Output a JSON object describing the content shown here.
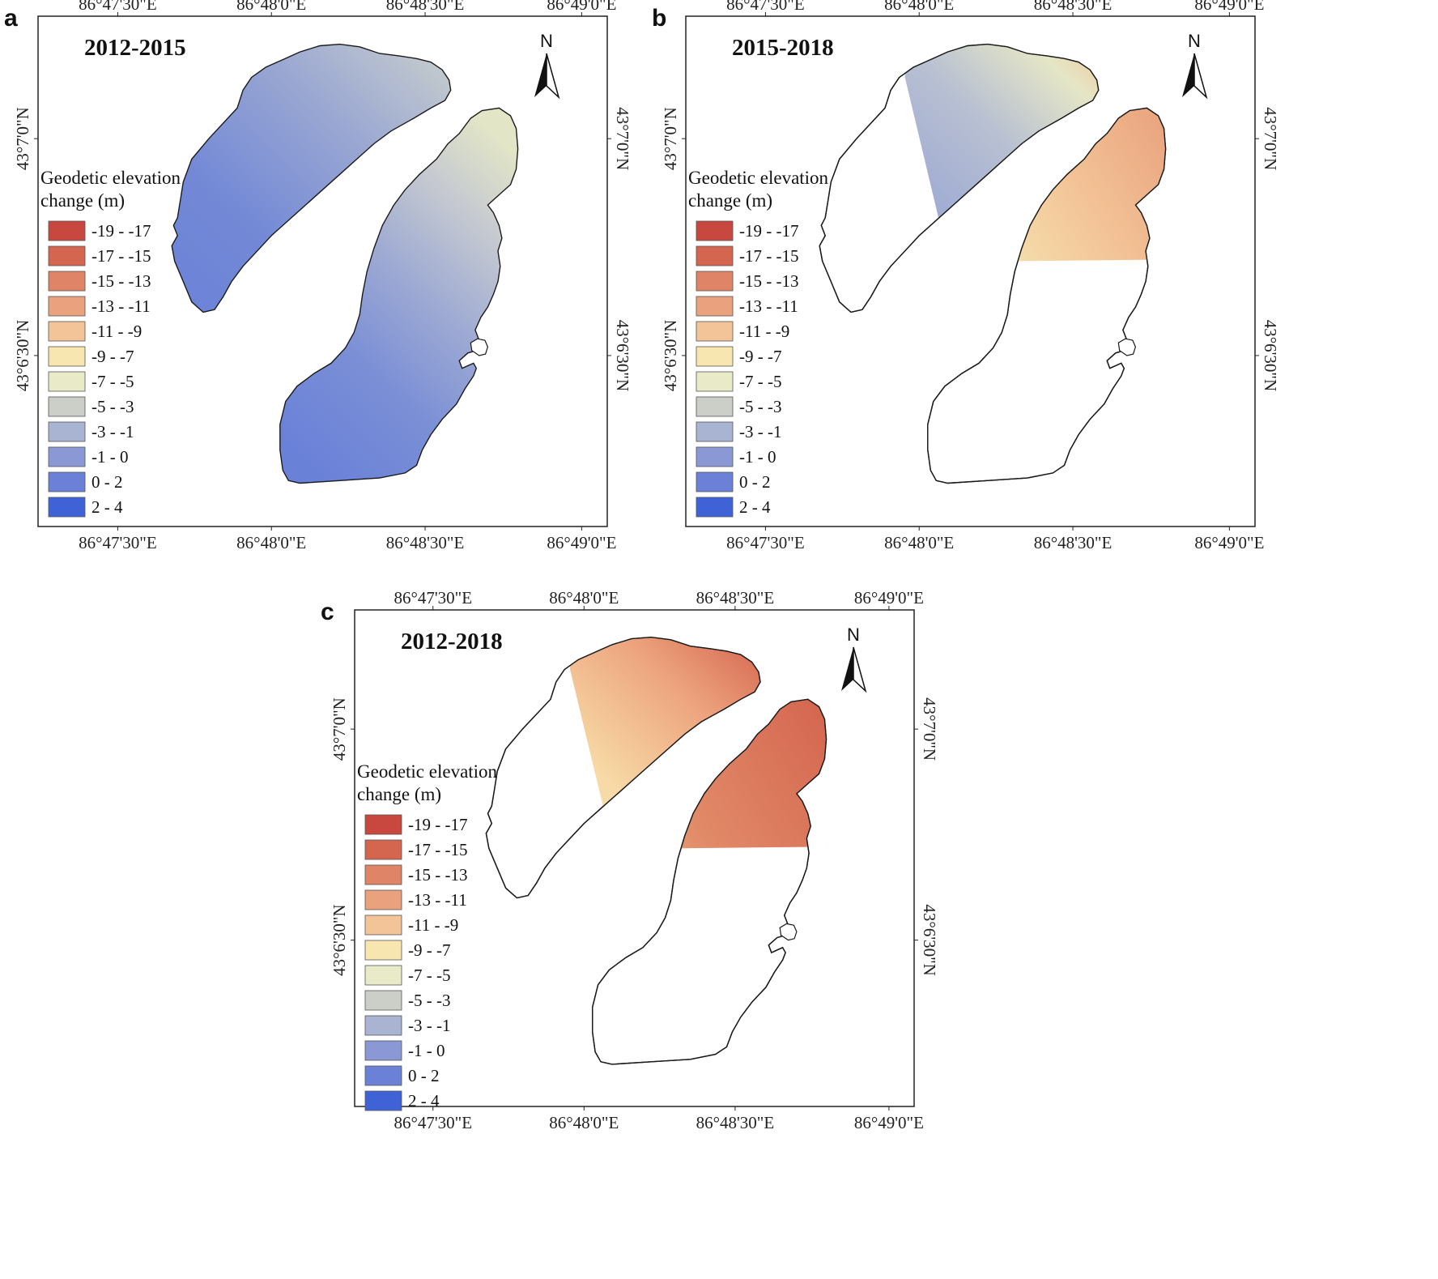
{
  "figure": {
    "colors": {
      "outline": "#1a1a1a",
      "frame": "#222222",
      "background": "#ffffff"
    },
    "legend": {
      "title_line1": "Geodetic elevation",
      "title_line2": "change (m)",
      "classes": [
        {
          "label": "-19 - -17",
          "color": "#c8473e"
        },
        {
          "label": "-17 - -15",
          "color": "#d4654f"
        },
        {
          "label": "-15 - -13",
          "color": "#df8466"
        },
        {
          "label": "-13 - -11",
          "color": "#e9a27d"
        },
        {
          "label": "-11 - -9",
          "color": "#f3c497"
        },
        {
          "label": "-9 - -7",
          "color": "#f8e6b0"
        },
        {
          "label": "-7 - -5",
          "color": "#e9ebc8"
        },
        {
          "label": "-5 - -3",
          "color": "#cccfc8"
        },
        {
          "label": "-3 - -1",
          "color": "#a9b4d2"
        },
        {
          "label": "-1 - 0",
          "color": "#8a98d6"
        },
        {
          "label": "0 - 2",
          "color": "#6b81d8"
        },
        {
          "label": "2 - 4",
          "color": "#3f63d6"
        }
      ]
    },
    "north_label": "N",
    "panels": [
      {
        "id": "a",
        "letter": "a",
        "title": "2012-2015",
        "top_lon_labels": [
          "86°47'30\"E",
          "86°48'0\"E",
          "86°48'30\"E",
          "86°49'0\"E"
        ],
        "bottom_lon_labels": [
          "86°47'30\"E",
          "86°48'0\"E",
          "86°48'30\"E",
          "86°49'0\"E"
        ],
        "left_lat_labels": [
          "43°7'0\"N",
          "43°6'30\"N"
        ],
        "right_lat_labels": [
          "43°7'0\"N",
          "43°6'30\"N"
        ],
        "glacier_west_fill": "#7d90d4",
        "glacier_east_fill": "#8597d2"
      },
      {
        "id": "b",
        "letter": "b",
        "title": "2015-2018",
        "top_lon_labels": [
          "86°47'30\"E",
          "86°48'0\"E",
          "86°48'30\"E",
          "86°49'0\"E"
        ],
        "bottom_lon_labels": [
          "86°47'30\"E",
          "86°48'0\"E",
          "86°48'30\"E",
          "86°49'0\"E"
        ],
        "left_lat_labels": [
          "43°7'0\"N",
          "43°6'30\"N"
        ],
        "right_lat_labels": [
          "43°7'0\"N",
          "43°6'30\"N"
        ],
        "glacier_west_fill": "#a3add4",
        "glacier_east_fill": "#efe0b0"
      },
      {
        "id": "c",
        "letter": "c",
        "title": "2012-2018",
        "top_lon_labels": [
          "86°47'30\"E",
          "86°48'0\"E",
          "86°48'30\"E",
          "86°49'0\"E"
        ],
        "bottom_lon_labels": [
          "86°47'30\"E",
          "86°48'0\"E",
          "86°48'30\"E",
          "86°49'0\"E"
        ],
        "left_lat_labels": [
          "43°7'0\"N",
          "43°6'30\"N"
        ],
        "right_lat_labels": [
          "43°7'0\"N",
          "43°6'30\"N"
        ],
        "glacier_west_fill": "#f4cf9c",
        "glacier_east_fill": "#e39d72"
      }
    ]
  }
}
